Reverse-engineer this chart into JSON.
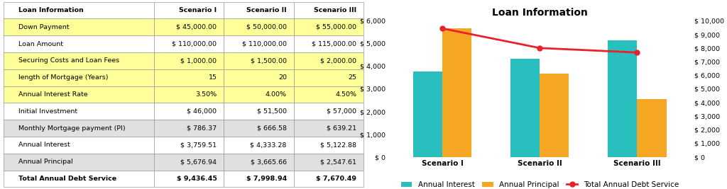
{
  "table": {
    "col_headers": [
      "Loan Information",
      "Scenario I",
      "Scenario II",
      "Scenario III"
    ],
    "rows": [
      {
        "label": "Down Payment",
        "values": [
          "$ 45,000.00",
          "$ 50,000.00",
          "$ 55,000.00"
        ],
        "highlight": true
      },
      {
        "label": "Loan Amount",
        "values": [
          "$ 110,000.00",
          "$ 110,000.00",
          "$ 115,000.00"
        ],
        "highlight": false,
        "gray": false
      },
      {
        "label": "Securing Costs and Loan Fees",
        "values": [
          "$ 1,000.00",
          "$ 1,500.00",
          "$ 2,000.00"
        ],
        "highlight": true
      },
      {
        "label": "length of Mortgage (Years)",
        "values": [
          "15",
          "20",
          "25"
        ],
        "highlight": true
      },
      {
        "label": "Annual Interest Rate",
        "values": [
          "3.50%",
          "4.00%",
          "4.50%"
        ],
        "highlight": true
      },
      {
        "label": "Initial Investment",
        "values": [
          "$ 46,000",
          "$ 51,500",
          "$ 57,000"
        ],
        "highlight": false,
        "gray": false
      },
      {
        "label": "Monthly Mortgage payment (PI)",
        "values": [
          "$ 786.37",
          "$ 666.58",
          "$ 639.21"
        ],
        "highlight": false,
        "gray": true
      },
      {
        "label": "Annual Interest",
        "values": [
          "$ 3,759.51",
          "$ 4,333.28",
          "$ 5,122.88"
        ],
        "highlight": false,
        "gray": false
      },
      {
        "label": "Annual Principal",
        "values": [
          "$ 5,676.94",
          "$ 3,665.66",
          "$ 2,547.61"
        ],
        "highlight": false,
        "gray": true
      }
    ],
    "total_row": {
      "label": "Total Annual Debt Service",
      "values": [
        "$ 9,436.45",
        "$ 7,998.94",
        "$ 7,670.49"
      ]
    },
    "highlight_color": "#FFFF99",
    "row_color_white": "#FFFFFF",
    "row_color_gray": "#E0E0E0",
    "header_bg": "#FFFFFF",
    "border_color": "#999999"
  },
  "chart": {
    "title": "Loan Information",
    "scenarios": [
      "Scenario I",
      "Scenario II",
      "Scenario III"
    ],
    "annual_interest": [
      3759.51,
      4333.28,
      5122.88
    ],
    "annual_principal": [
      5676.94,
      3665.66,
      2547.61
    ],
    "total_annual_debt": [
      9436.45,
      7998.94,
      7670.49
    ],
    "bar_color_interest": "#2ABFBF",
    "bar_color_principal": "#F5A623",
    "line_color": "#E8212B",
    "ylim_left": [
      0,
      6000
    ],
    "ylim_right": [
      0,
      10000
    ],
    "yticks_left": [
      0,
      1000,
      2000,
      3000,
      4000,
      5000,
      6000
    ],
    "yticks_right": [
      0,
      1000,
      2000,
      3000,
      4000,
      5000,
      6000,
      7000,
      8000,
      9000,
      10000
    ],
    "legend_labels": [
      "Annual Interest",
      "Annual Principal",
      "Total Annual Debt Service"
    ],
    "bg_color": "#FFFFFF"
  }
}
